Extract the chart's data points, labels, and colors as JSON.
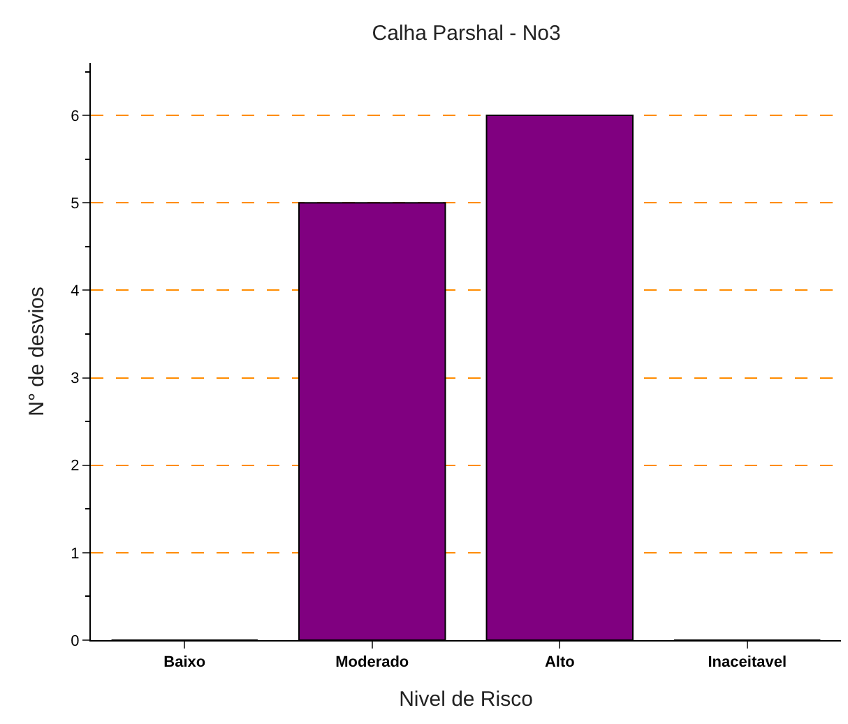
{
  "chart_data": {
    "type": "bar",
    "title": "Calha Parshal - No3",
    "xlabel": "Nivel de Risco",
    "ylabel": "N° de desvios",
    "categories": [
      "Baixo",
      "Moderado",
      "Alto",
      "Inaceitavel"
    ],
    "series": [
      {
        "color": "#800080",
        "values": [
          0,
          5,
          6,
          0
        ]
      }
    ],
    "ylim": [
      0,
      6.6
    ],
    "yticks": [
      0,
      1,
      2,
      3,
      4,
      5,
      6
    ],
    "grid": "y",
    "legend": false
  }
}
